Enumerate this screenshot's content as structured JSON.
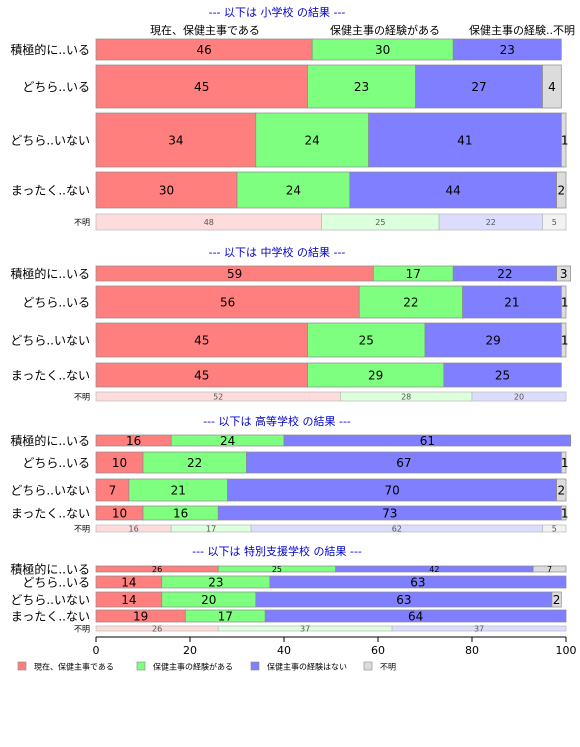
{
  "chart_data": {
    "type": "bar",
    "orientation": "horizontal-stacked",
    "xlim": [
      0,
      100
    ],
    "x_ticks": [
      "0",
      "20",
      "40",
      "60",
      "80",
      "100"
    ],
    "series_names": [
      "現在、保健主事である",
      "保健主事の経験がある",
      "保健主事の経験はない",
      "不明"
    ],
    "column_headers": [
      "現在、保健主事である",
      "保健主事の経験がある",
      "保健主事の経験..不明"
    ],
    "colors": [
      "#FF7F7F",
      "#7FFF7F",
      "#7F7FFF",
      "#DCDCDC"
    ],
    "legend": {
      "position": "bottom-left",
      "items": [
        "現在、保健主事である",
        "保健主事の経験がある",
        "保健主事の経験はない",
        "不明"
      ]
    },
    "panels": [
      {
        "title": "--- 以下は 小学校 の結果 ---",
        "categories": [
          "積極的に..いる",
          "どちら..いる",
          "どちら..いない",
          "まったく..ない",
          "不明"
        ],
        "rows": [
          {
            "label": "積極的に..いる",
            "values": [
              46,
              30,
              23,
              0
            ],
            "labels": [
              "46",
              "30",
              "23",
              ""
            ]
          },
          {
            "label": "どちら..いる",
            "values": [
              45,
              23,
              27,
              4
            ],
            "labels": [
              "45",
              "23",
              "27",
              "4"
            ]
          },
          {
            "label": "どちら..いない",
            "values": [
              34,
              24,
              41,
              1
            ],
            "labels": [
              "34",
              "24",
              "41",
              "1"
            ]
          },
          {
            "label": "まったく..ない",
            "values": [
              30,
              24,
              44,
              2
            ],
            "labels": [
              "30",
              "24",
              "44",
              "2"
            ]
          },
          {
            "label": "不明",
            "values": [
              48,
              25,
              22,
              5
            ],
            "labels": [
              "48",
              "25",
              "22",
              "5"
            ],
            "faded": true
          }
        ]
      },
      {
        "title": "--- 以下は 中学校 の結果 ---",
        "categories": [
          "積極的に..いる",
          "どちら..いる",
          "どちら..いない",
          "まったく..ない",
          "不明"
        ],
        "rows": [
          {
            "label": "積極的に..いる",
            "values": [
              59,
              17,
              22,
              3
            ],
            "labels": [
              "59",
              "17",
              "22",
              "3"
            ]
          },
          {
            "label": "どちら..いる",
            "values": [
              56,
              22,
              21,
              1
            ],
            "labels": [
              "56",
              "22",
              "21",
              "1"
            ]
          },
          {
            "label": "どちら..いない",
            "values": [
              45,
              25,
              29,
              1
            ],
            "labels": [
              "45",
              "25",
              "29",
              "1"
            ]
          },
          {
            "label": "まったく..ない",
            "values": [
              45,
              29,
              25,
              0
            ],
            "labels": [
              "45",
              "29",
              "25",
              ""
            ]
          },
          {
            "label": "不明",
            "values": [
              52,
              28,
              20,
              0
            ],
            "labels": [
              "52",
              "28",
              "20",
              ""
            ],
            "faded": true
          }
        ]
      },
      {
        "title": "--- 以下は 高等学校 の結果 ---",
        "categories": [
          "積極的に..いる",
          "どちら..いる",
          "どちら..いない",
          "まったく..ない",
          "不明"
        ],
        "rows": [
          {
            "label": "積極的に..いる",
            "values": [
              16,
              24,
              61,
              0
            ],
            "labels": [
              "16",
              "24",
              "61",
              ""
            ]
          },
          {
            "label": "どちら..いる",
            "values": [
              10,
              22,
              67,
              1
            ],
            "labels": [
              "10",
              "22",
              "67",
              "1"
            ]
          },
          {
            "label": "どちら..いない",
            "values": [
              7,
              21,
              70,
              2
            ],
            "labels": [
              "7",
              "21",
              "70",
              "2"
            ]
          },
          {
            "label": "まったく..ない",
            "values": [
              10,
              16,
              73,
              1
            ],
            "labels": [
              "10",
              "16",
              "73",
              "1"
            ]
          },
          {
            "label": "不明",
            "values": [
              16,
              17,
              62,
              5
            ],
            "labels": [
              "16",
              "17",
              "62",
              "5"
            ],
            "faded": true
          }
        ]
      },
      {
        "title": "--- 以下は 特別支援学校 の結果 ---",
        "categories": [
          "積極的に..いる",
          "どちら..いる",
          "どちら..いない",
          "まったく..ない",
          "不明"
        ],
        "rows": [
          {
            "label": "積極的に..いる",
            "values": [
              26,
              25,
              42,
              7
            ],
            "labels": [
              "26",
              "25",
              "42",
              "7"
            ],
            "small": true
          },
          {
            "label": "どちら..いる",
            "values": [
              14,
              23,
              63,
              0
            ],
            "labels": [
              "14",
              "23",
              "63",
              ""
            ]
          },
          {
            "label": "どちら..いない",
            "values": [
              14,
              20,
              63,
              2
            ],
            "labels": [
              "14",
              "20",
              "63",
              "2"
            ]
          },
          {
            "label": "まったく..ない",
            "values": [
              19,
              17,
              64,
              0
            ],
            "labels": [
              "19",
              "17",
              "64",
              ""
            ]
          },
          {
            "label": "不明",
            "values": [
              26,
              37,
              37,
              0
            ],
            "labels": [
              "26",
              "37",
              "37",
              ""
            ],
            "faded": true
          }
        ]
      }
    ]
  }
}
